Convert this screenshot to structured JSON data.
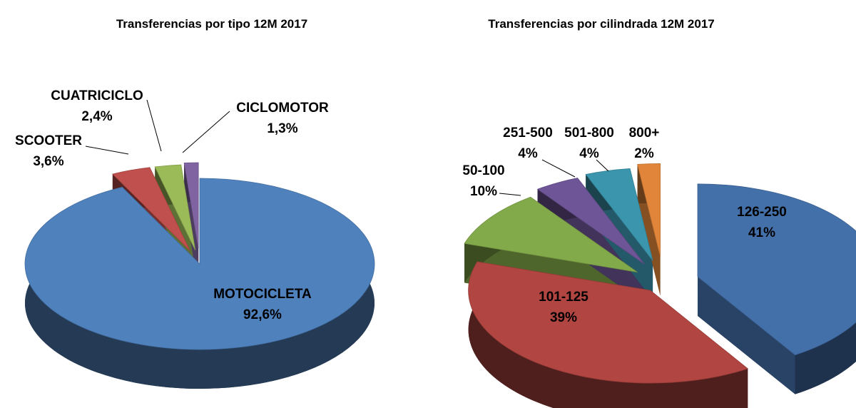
{
  "chart_data": [
    {
      "type": "pie",
      "title": "Transferencias por tipo 12M 2017",
      "slices": [
        {
          "label": "MOTOCICLETA",
          "value": 92.6,
          "display": "92,6%",
          "color": "#4F81BD"
        },
        {
          "label": "SCOOTER",
          "value": 3.6,
          "display": "3,6%",
          "color": "#C0504D"
        },
        {
          "label": "CUATRICICLO",
          "value": 2.4,
          "display": "2,4%",
          "color": "#9BBB59"
        },
        {
          "label": "CICLOMOTOR",
          "value": 1.3,
          "display": "1,3%",
          "color": "#8064A2"
        }
      ]
    },
    {
      "type": "pie",
      "title": "Transferencias por cilindrada 12M 2017",
      "slices": [
        {
          "label": "126-250",
          "value": 41,
          "display": "41%",
          "color": "#4470AA"
        },
        {
          "label": "101-125",
          "value": 39,
          "display": "39%",
          "color": "#B04541"
        },
        {
          "label": "50-100",
          "value": 10,
          "display": "10%",
          "color": "#82A94A"
        },
        {
          "label": "251-500",
          "value": 4,
          "display": "4%",
          "color": "#6E5597"
        },
        {
          "label": "501-800",
          "value": 4,
          "display": "4%",
          "color": "#3A95AD"
        },
        {
          "label": "800+",
          "value": 2,
          "display": "2%",
          "color": "#E0853A"
        }
      ]
    }
  ]
}
